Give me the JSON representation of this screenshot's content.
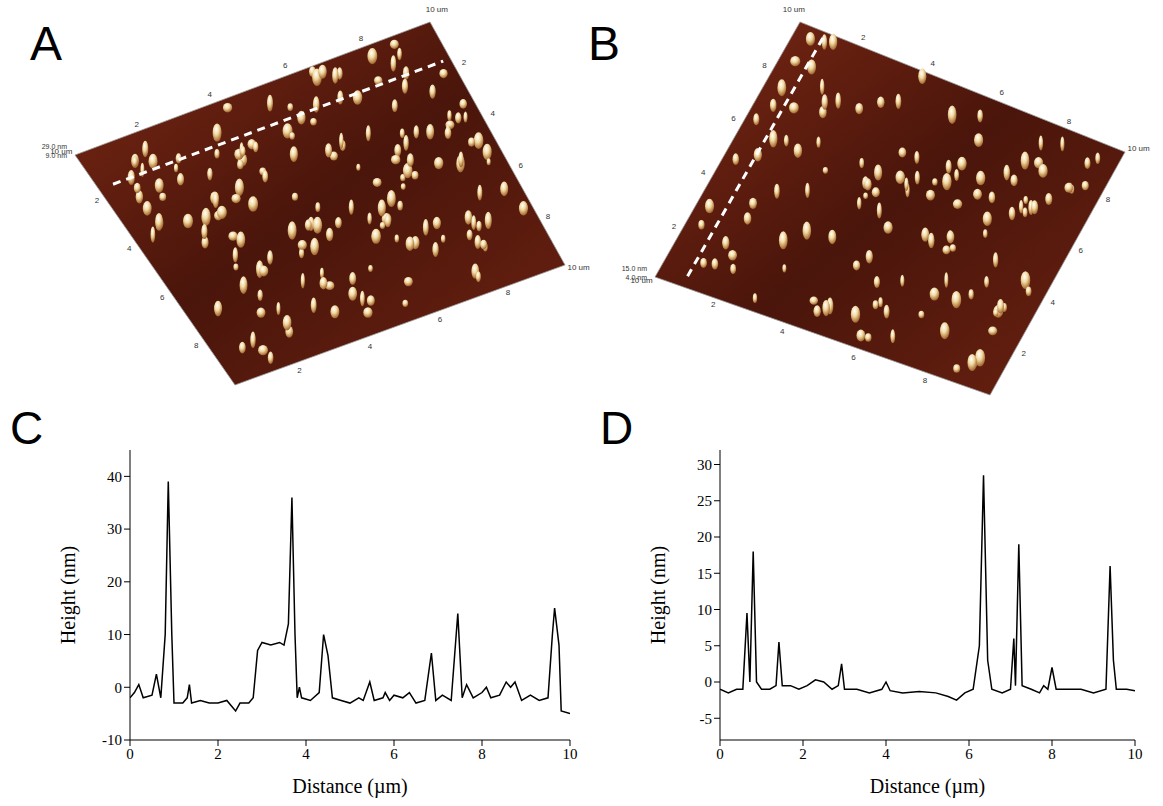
{
  "images": [
    {
      "panel": "A",
      "xlim": [
        0,
        10
      ],
      "axis_ticks": [
        2,
        4,
        6,
        8
      ],
      "axis_end_label": "10 um",
      "z_labels": [
        "29.0 nm",
        "9.0 nm"
      ]
    },
    {
      "panel": "B",
      "xlim": [
        0,
        10
      ],
      "axis_ticks": [
        2,
        4,
        6,
        8
      ],
      "axis_end_label": "10 um",
      "z_labels": [
        "15.0 nm",
        "4.0 nm"
      ]
    }
  ],
  "chart_data": [
    {
      "panel": "C",
      "type": "line",
      "xlabel": "Distance (µm)",
      "ylabel": "Height (nm)",
      "color": "#000000",
      "xlim": [
        0,
        10
      ],
      "ylim": [
        -10,
        45
      ],
      "xticks": [
        0,
        2,
        4,
        6,
        8,
        10
      ],
      "yticks": [
        -10,
        0,
        10,
        20,
        30,
        40
      ],
      "x": [
        0,
        0.1,
        0.2,
        0.3,
        0.5,
        0.6,
        0.7,
        0.8,
        0.87,
        0.95,
        1.0,
        1.2,
        1.3,
        1.35,
        1.4,
        1.6,
        1.8,
        2.0,
        2.2,
        2.4,
        2.5,
        2.7,
        2.8,
        2.9,
        3.0,
        3.2,
        3.4,
        3.5,
        3.6,
        3.68,
        3.75,
        3.8,
        3.85,
        3.9,
        4.1,
        4.3,
        4.4,
        4.5,
        4.6,
        4.8,
        5.0,
        5.2,
        5.3,
        5.45,
        5.55,
        5.75,
        5.8,
        5.9,
        6.0,
        6.2,
        6.35,
        6.5,
        6.7,
        6.85,
        6.95,
        7.1,
        7.3,
        7.45,
        7.55,
        7.65,
        7.8,
        8.0,
        8.1,
        8.2,
        8.4,
        8.55,
        8.65,
        8.75,
        8.9,
        9.1,
        9.3,
        9.5,
        9.6,
        9.65,
        9.75,
        9.8,
        10
      ],
      "values": [
        -2,
        -1,
        0.5,
        -2,
        -1.5,
        2.5,
        -2,
        10,
        39,
        10,
        -3,
        -3,
        -2,
        0.5,
        -3,
        -2.5,
        -3,
        -3,
        -2.5,
        -4.5,
        -3,
        -3,
        -2,
        7,
        8.5,
        8,
        8.5,
        8,
        12,
        36,
        10,
        -2,
        0,
        -2,
        -2.5,
        -1,
        10,
        6,
        -2,
        -2.5,
        -3,
        -2,
        -2.5,
        1,
        -2.5,
        -2,
        -1,
        -2.5,
        -1.5,
        -2,
        -1,
        -3,
        -2.5,
        6.5,
        -2.5,
        -1.5,
        -2.5,
        14,
        -2,
        0.5,
        -2,
        -1,
        0,
        -2,
        -1.5,
        1,
        0,
        1,
        -2.5,
        -1.5,
        -2.5,
        -2,
        10,
        15,
        8,
        -4.5,
        -5
      ]
    },
    {
      "panel": "D",
      "type": "line",
      "xlabel": "Distance (µm)",
      "ylabel": "Height (nm)",
      "color": "#000000",
      "xlim": [
        0,
        10
      ],
      "ylim": [
        -8,
        32
      ],
      "xticks": [
        0,
        2,
        4,
        6,
        8,
        10
      ],
      "yticks": [
        -5,
        0,
        5,
        10,
        15,
        20,
        25,
        30
      ],
      "x": [
        0,
        0.2,
        0.4,
        0.55,
        0.65,
        0.72,
        0.8,
        0.88,
        1.0,
        1.2,
        1.35,
        1.42,
        1.5,
        1.7,
        1.9,
        2.1,
        2.3,
        2.5,
        2.7,
        2.85,
        2.93,
        3.0,
        3.3,
        3.6,
        3.9,
        4.0,
        4.1,
        4.4,
        4.8,
        5.2,
        5.5,
        5.7,
        5.9,
        6.1,
        6.25,
        6.35,
        6.45,
        6.55,
        6.8,
        7.0,
        7.08,
        7.12,
        7.2,
        7.28,
        7.5,
        7.7,
        7.8,
        7.9,
        8.0,
        8.1,
        8.4,
        8.7,
        9.0,
        9.3,
        9.4,
        9.48,
        9.55,
        9.8,
        10
      ],
      "values": [
        -1,
        -1.5,
        -1,
        -1,
        9.5,
        0,
        18,
        0,
        -1,
        -1,
        -0.5,
        5.5,
        -0.5,
        -0.5,
        -1,
        -0.5,
        0.3,
        0,
        -1,
        -0.5,
        2.5,
        -1,
        -1,
        -1.5,
        -1,
        0,
        -1.2,
        -1.5,
        -1.3,
        -1.5,
        -2,
        -2.5,
        -1.5,
        -1,
        5,
        28.5,
        3,
        -1,
        -1.5,
        -1,
        6,
        -0.5,
        19,
        -0.5,
        -1,
        -1.5,
        -0.5,
        -1,
        2,
        -1,
        -1,
        -1,
        -1.5,
        -1,
        16,
        3,
        -1,
        -1,
        -1.2
      ]
    }
  ]
}
